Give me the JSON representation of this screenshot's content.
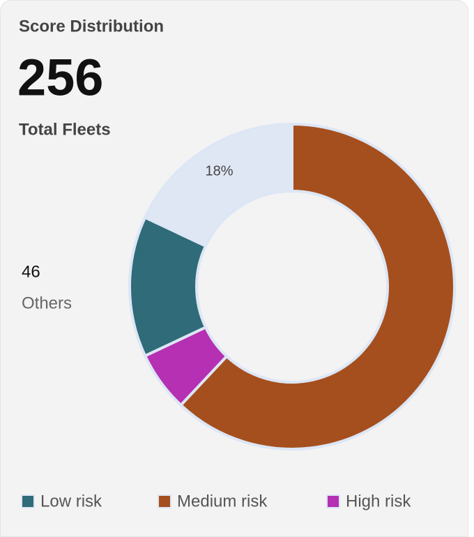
{
  "chart_data": {
    "type": "pie",
    "donut": true,
    "title": "Score Distribution",
    "total": 256,
    "total_label": "Total Fleets",
    "others_count": 46,
    "categories": [
      "Medium risk",
      "High risk",
      "Low risk",
      "Others"
    ],
    "values": [
      62,
      6,
      14,
      18
    ],
    "value_labels": [
      null,
      null,
      null,
      "18%"
    ],
    "colors": [
      "#a54f1e",
      "#b530b2",
      "#2f6b78",
      "#dfe7f4"
    ]
  }
}
